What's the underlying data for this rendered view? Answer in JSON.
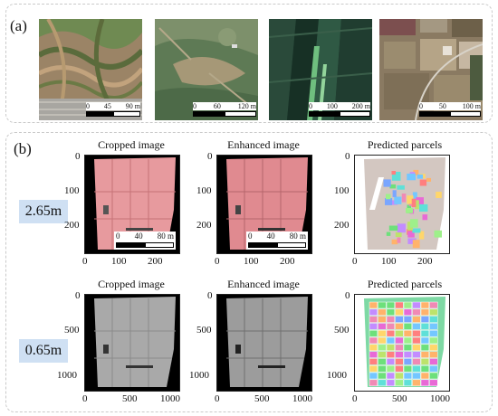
{
  "panel_a": {
    "label": "(a)",
    "thumbnails": [
      {
        "name": "terraced-hills",
        "scale": [
          "0",
          "45",
          "90 m"
        ]
      },
      {
        "name": "green-hills",
        "scale": [
          "0",
          "60",
          "120 m"
        ]
      },
      {
        "name": "dark-fields",
        "scale": [
          "0",
          "100",
          "200 m"
        ]
      },
      {
        "name": "rural-plots",
        "scale": [
          "0",
          "50",
          "100 m"
        ]
      }
    ]
  },
  "panel_b": {
    "label": "(b)",
    "rows": [
      {
        "resolution": "2.65m",
        "titles": [
          "Cropped image",
          "Enhanced image",
          "Predicted parcels"
        ],
        "yticks": [
          "0",
          "100",
          "200"
        ],
        "xticks": [
          "0",
          "100",
          "200"
        ],
        "scale": [
          "0",
          "40",
          "80 m"
        ]
      },
      {
        "resolution": "0.65m",
        "titles": [
          "Cropped image",
          "Enhanced image",
          "Predicted parcels"
        ],
        "yticks": [
          "0",
          "500",
          "1000"
        ],
        "xticks": [
          "0",
          "500",
          "1000"
        ]
      }
    ]
  },
  "colors": {
    "badge": "#cfe0f3",
    "false_color_field": "#e79a9e",
    "parcel_background": "#d3c7c1"
  }
}
